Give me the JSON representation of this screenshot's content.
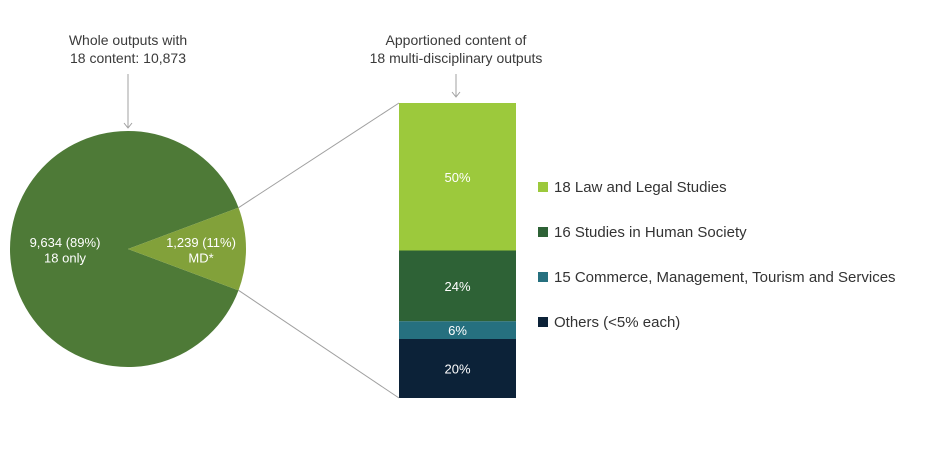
{
  "pie_caption": [
    "Whole outputs with",
    "18 content: 10,873"
  ],
  "bar_caption": [
    "Apportioned content of",
    "18 multi-disciplinary outputs"
  ],
  "colors": {
    "only": "#4e7a37",
    "md": "#82a13a",
    "law": "#9cc93c",
    "human_society": "#2e6236",
    "commerce": "#26707f",
    "others": "#0c2238",
    "connector": "#a0a0a0"
  },
  "chart_data": [
    {
      "type": "pie",
      "title": "Whole outputs with 18 content: 10,873",
      "slices": [
        {
          "key": "only",
          "value": 9634,
          "percent": 89,
          "label": [
            "9,634 (89%)",
            "18 only"
          ]
        },
        {
          "key": "md",
          "value": 1239,
          "percent": 11,
          "label": [
            "1,239 (11%)",
            "MD*"
          ]
        }
      ]
    },
    {
      "type": "bar",
      "title": "Apportioned content of 18 multi-disciplinary outputs",
      "stacked": true,
      "segments": [
        {
          "key": "law",
          "name": "18 Law and Legal Studies",
          "value": 50,
          "label": "50%"
        },
        {
          "key": "human_society",
          "name": "16 Studies in Human Society",
          "value": 24,
          "label": "24%"
        },
        {
          "key": "commerce",
          "name": "15 Commerce, Management, Tourism and Services",
          "value": 6,
          "label": "6%"
        },
        {
          "key": "others",
          "name": "Others (<5% each)",
          "value": 20,
          "label": "20%"
        }
      ]
    }
  ]
}
